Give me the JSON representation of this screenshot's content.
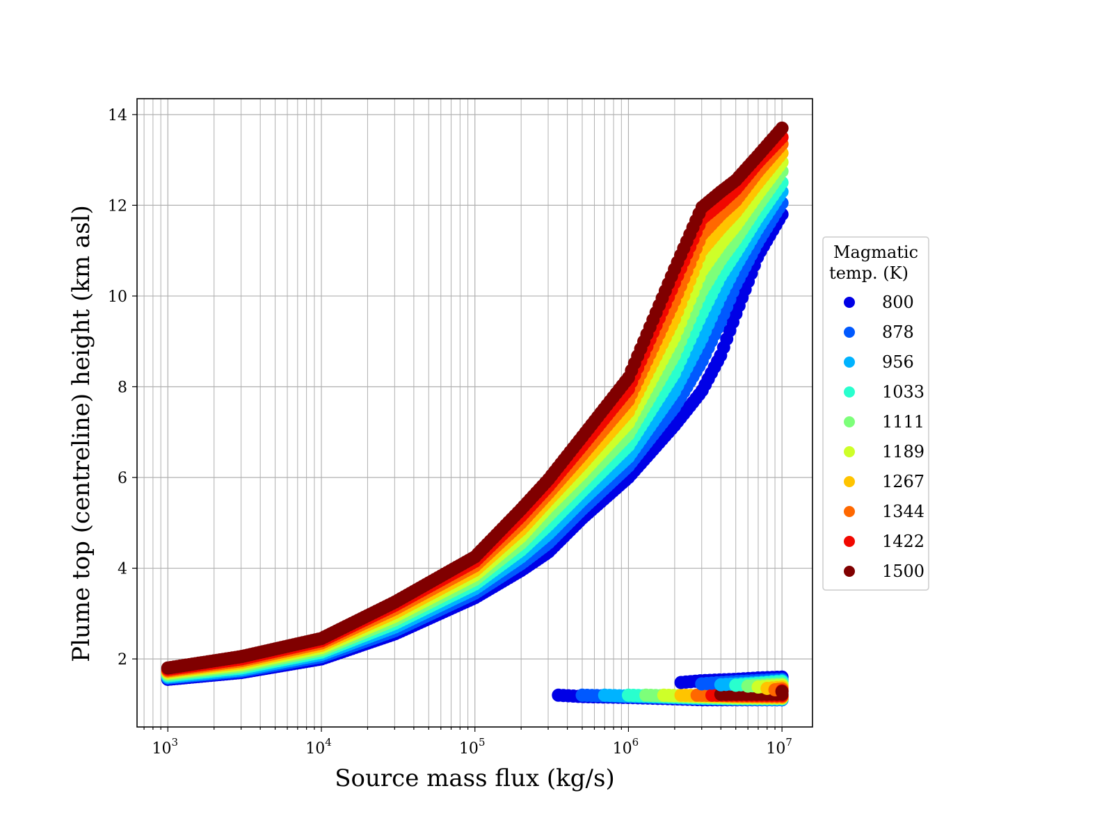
{
  "chart_data": {
    "type": "scatter",
    "title": "",
    "xlabel": "Source mass flux (kg/s)",
    "ylabel": "Plume top (centreline) height (km asl)",
    "xscale": "log",
    "xlim": [
      630,
      15800000
    ],
    "ylim": [
      0.5,
      14.35
    ],
    "x_ticks": [
      {
        "base": "10",
        "exp": "3",
        "value": 1000
      },
      {
        "base": "10",
        "exp": "4",
        "value": 10000
      },
      {
        "base": "10",
        "exp": "5",
        "value": 100000
      },
      {
        "base": "10",
        "exp": "6",
        "value": 1000000
      },
      {
        "base": "10",
        "exp": "7",
        "value": 10000000
      }
    ],
    "y_ticks": [
      "2",
      "4",
      "6",
      "8",
      "10",
      "12",
      "14"
    ],
    "grid": true,
    "legend": {
      "title_lines": [
        "Magmatic",
        "temp. (K)"
      ],
      "placement": "outside-right"
    },
    "series": [
      {
        "name": "800",
        "color": "#0000e6",
        "main": [
          [
            1000,
            1.55
          ],
          [
            3000,
            1.7
          ],
          [
            10000,
            2.0
          ],
          [
            30000,
            2.55
          ],
          [
            100000,
            3.35
          ],
          [
            200000,
            3.95
          ],
          [
            300000,
            4.35
          ],
          [
            500000,
            5.1
          ],
          [
            1000000,
            6.0
          ],
          [
            2000000,
            7.15
          ],
          [
            3000000,
            7.9
          ],
          [
            4000000,
            8.7
          ],
          [
            5000000,
            9.6
          ],
          [
            7000000,
            10.9
          ],
          [
            10000000,
            11.8
          ]
        ],
        "low": [
          [
            350000,
            1.2
          ],
          [
            500000,
            1.17
          ],
          [
            1000000,
            1.15
          ],
          [
            2000000,
            1.12
          ],
          [
            3000000,
            1.1
          ],
          [
            5000000,
            1.1
          ],
          [
            10000000,
            1.1
          ]
        ],
        "high": [
          [
            2200000,
            1.48
          ],
          [
            3000000,
            1.52
          ],
          [
            5000000,
            1.55
          ],
          [
            7000000,
            1.58
          ],
          [
            10000000,
            1.6
          ]
        ]
      },
      {
        "name": "878",
        "color": "#0059ff",
        "main": [
          [
            1000,
            1.58
          ],
          [
            3000,
            1.73
          ],
          [
            10000,
            2.05
          ],
          [
            30000,
            2.62
          ],
          [
            100000,
            3.45
          ],
          [
            200000,
            4.1
          ],
          [
            300000,
            4.55
          ],
          [
            500000,
            5.3
          ],
          [
            1000000,
            6.25
          ],
          [
            2000000,
            7.55
          ],
          [
            3000000,
            8.55
          ],
          [
            4000000,
            9.45
          ],
          [
            5000000,
            10.25
          ],
          [
            7000000,
            11.2
          ],
          [
            10000000,
            12.05
          ]
        ],
        "low": [
          [
            500000,
            1.2
          ],
          [
            1000000,
            1.17
          ],
          [
            2000000,
            1.14
          ],
          [
            3000000,
            1.12
          ],
          [
            5000000,
            1.11
          ],
          [
            10000000,
            1.1
          ]
        ],
        "high": [
          [
            3000000,
            1.45
          ],
          [
            5000000,
            1.5
          ],
          [
            10000000,
            1.55
          ]
        ]
      },
      {
        "name": "956",
        "color": "#00b3ff",
        "main": [
          [
            1000,
            1.6
          ],
          [
            3000,
            1.76
          ],
          [
            10000,
            2.1
          ],
          [
            30000,
            2.7
          ],
          [
            100000,
            3.55
          ],
          [
            200000,
            4.25
          ],
          [
            300000,
            4.75
          ],
          [
            500000,
            5.5
          ],
          [
            1000000,
            6.45
          ],
          [
            2000000,
            7.9
          ],
          [
            3000000,
            9.05
          ],
          [
            4000000,
            10.0
          ],
          [
            5000000,
            10.65
          ],
          [
            7000000,
            11.5
          ],
          [
            10000000,
            12.3
          ]
        ],
        "low": [
          [
            700000,
            1.2
          ],
          [
            1000000,
            1.18
          ],
          [
            2000000,
            1.15
          ],
          [
            3000000,
            1.13
          ],
          [
            5000000,
            1.12
          ],
          [
            10000000,
            1.11
          ]
        ],
        "high": [
          [
            4000000,
            1.43
          ],
          [
            7000000,
            1.48
          ],
          [
            10000000,
            1.52
          ]
        ]
      },
      {
        "name": "1033",
        "color": "#29ffce",
        "main": [
          [
            1000,
            1.63
          ],
          [
            3000,
            1.8
          ],
          [
            10000,
            2.15
          ],
          [
            30000,
            2.78
          ],
          [
            100000,
            3.65
          ],
          [
            200000,
            4.4
          ],
          [
            300000,
            4.95
          ],
          [
            500000,
            5.7
          ],
          [
            1000000,
            6.7
          ],
          [
            2000000,
            8.3
          ],
          [
            3000000,
            9.6
          ],
          [
            4000000,
            10.45
          ],
          [
            5000000,
            10.95
          ],
          [
            7000000,
            11.75
          ],
          [
            10000000,
            12.5
          ]
        ],
        "low": [
          [
            1000000,
            1.2
          ],
          [
            1500000,
            1.18
          ],
          [
            2000000,
            1.16
          ],
          [
            3000000,
            1.14
          ],
          [
            5000000,
            1.12
          ],
          [
            10000000,
            1.12
          ]
        ],
        "high": [
          [
            5000000,
            1.42
          ],
          [
            10000000,
            1.5
          ]
        ]
      },
      {
        "name": "1111",
        "color": "#7dff7a",
        "main": [
          [
            1000,
            1.66
          ],
          [
            3000,
            1.84
          ],
          [
            10000,
            2.2
          ],
          [
            30000,
            2.86
          ],
          [
            100000,
            3.75
          ],
          [
            200000,
            4.55
          ],
          [
            300000,
            5.15
          ],
          [
            500000,
            5.9
          ],
          [
            1000000,
            6.95
          ],
          [
            2000000,
            8.7
          ],
          [
            3000000,
            10.1
          ],
          [
            4000000,
            10.8
          ],
          [
            5000000,
            11.25
          ],
          [
            7000000,
            12.0
          ],
          [
            10000000,
            12.75
          ]
        ],
        "low": [
          [
            1300000,
            1.2
          ],
          [
            2000000,
            1.18
          ],
          [
            3000000,
            1.16
          ],
          [
            5000000,
            1.14
          ],
          [
            10000000,
            1.13
          ]
        ],
        "high": [
          [
            6000000,
            1.4
          ],
          [
            10000000,
            1.45
          ]
        ]
      },
      {
        "name": "1189",
        "color": "#ceff29",
        "main": [
          [
            1000,
            1.69
          ],
          [
            3000,
            1.88
          ],
          [
            10000,
            2.25
          ],
          [
            30000,
            2.94
          ],
          [
            100000,
            3.85
          ],
          [
            200000,
            4.7
          ],
          [
            300000,
            5.35
          ],
          [
            500000,
            6.1
          ],
          [
            1000000,
            7.2
          ],
          [
            2000000,
            9.1
          ],
          [
            3000000,
            10.55
          ],
          [
            4000000,
            11.15
          ],
          [
            5000000,
            11.55
          ],
          [
            7000000,
            12.25
          ],
          [
            10000000,
            12.95
          ]
        ],
        "low": [
          [
            1700000,
            1.2
          ],
          [
            2500000,
            1.18
          ],
          [
            3000000,
            1.17
          ],
          [
            5000000,
            1.15
          ],
          [
            10000000,
            1.14
          ]
        ],
        "high": [
          [
            7000000,
            1.38
          ],
          [
            10000000,
            1.42
          ]
        ]
      },
      {
        "name": "1267",
        "color": "#ffc400",
        "main": [
          [
            1000,
            1.72
          ],
          [
            3000,
            1.92
          ],
          [
            10000,
            2.3
          ],
          [
            30000,
            3.02
          ],
          [
            100000,
            3.95
          ],
          [
            200000,
            4.85
          ],
          [
            300000,
            5.5
          ],
          [
            500000,
            6.3
          ],
          [
            1000000,
            7.45
          ],
          [
            2000000,
            9.5
          ],
          [
            3000000,
            11.0
          ],
          [
            4000000,
            11.5
          ],
          [
            5000000,
            11.85
          ],
          [
            7000000,
            12.5
          ],
          [
            10000000,
            13.15
          ]
        ],
        "low": [
          [
            2200000,
            1.2
          ],
          [
            3000000,
            1.19
          ],
          [
            5000000,
            1.17
          ],
          [
            10000000,
            1.15
          ]
        ],
        "high": [
          [
            8000000,
            1.35
          ],
          [
            10000000,
            1.38
          ]
        ]
      },
      {
        "name": "1344",
        "color": "#ff6800",
        "main": [
          [
            1000,
            1.74
          ],
          [
            3000,
            1.96
          ],
          [
            10000,
            2.35
          ],
          [
            30000,
            3.1
          ],
          [
            100000,
            4.05
          ],
          [
            200000,
            5.0
          ],
          [
            300000,
            5.65
          ],
          [
            500000,
            6.5
          ],
          [
            1000000,
            7.7
          ],
          [
            2000000,
            9.9
          ],
          [
            3000000,
            11.35
          ],
          [
            4000000,
            11.8
          ],
          [
            5000000,
            12.1
          ],
          [
            7000000,
            12.75
          ],
          [
            10000000,
            13.35
          ]
        ],
        "low": [
          [
            2800000,
            1.2
          ],
          [
            4000000,
            1.19
          ],
          [
            5000000,
            1.18
          ],
          [
            10000000,
            1.17
          ]
        ],
        "high": [
          [
            9000000,
            1.32
          ],
          [
            10000000,
            1.34
          ]
        ]
      },
      {
        "name": "1422",
        "color": "#f10800",
        "main": [
          [
            1000,
            1.77
          ],
          [
            3000,
            2.0
          ],
          [
            10000,
            2.4
          ],
          [
            30000,
            3.18
          ],
          [
            100000,
            4.15
          ],
          [
            200000,
            5.15
          ],
          [
            300000,
            5.8
          ],
          [
            500000,
            6.7
          ],
          [
            1000000,
            7.95
          ],
          [
            2000000,
            10.3
          ],
          [
            3000000,
            11.7
          ],
          [
            4000000,
            12.05
          ],
          [
            5000000,
            12.35
          ],
          [
            7000000,
            12.95
          ],
          [
            10000000,
            13.5
          ]
        ],
        "low": [
          [
            3500000,
            1.2
          ],
          [
            5000000,
            1.2
          ],
          [
            10000000,
            1.19
          ]
        ],
        "high": [
          [
            10000000,
            1.3
          ]
        ]
      },
      {
        "name": "1500",
        "color": "#800000",
        "main": [
          [
            1000,
            1.8
          ],
          [
            3000,
            2.05
          ],
          [
            10000,
            2.45
          ],
          [
            30000,
            3.25
          ],
          [
            100000,
            4.25
          ],
          [
            200000,
            5.3
          ],
          [
            300000,
            5.95
          ],
          [
            500000,
            6.9
          ],
          [
            1000000,
            8.2
          ],
          [
            2000000,
            10.6
          ],
          [
            3000000,
            11.95
          ],
          [
            4000000,
            12.3
          ],
          [
            5000000,
            12.55
          ],
          [
            7000000,
            13.1
          ],
          [
            10000000,
            13.7
          ]
        ],
        "low": [
          [
            4000000,
            1.22
          ],
          [
            5000000,
            1.22
          ],
          [
            10000000,
            1.22
          ]
        ],
        "high": [
          [
            10000000,
            1.28
          ]
        ]
      }
    ]
  }
}
